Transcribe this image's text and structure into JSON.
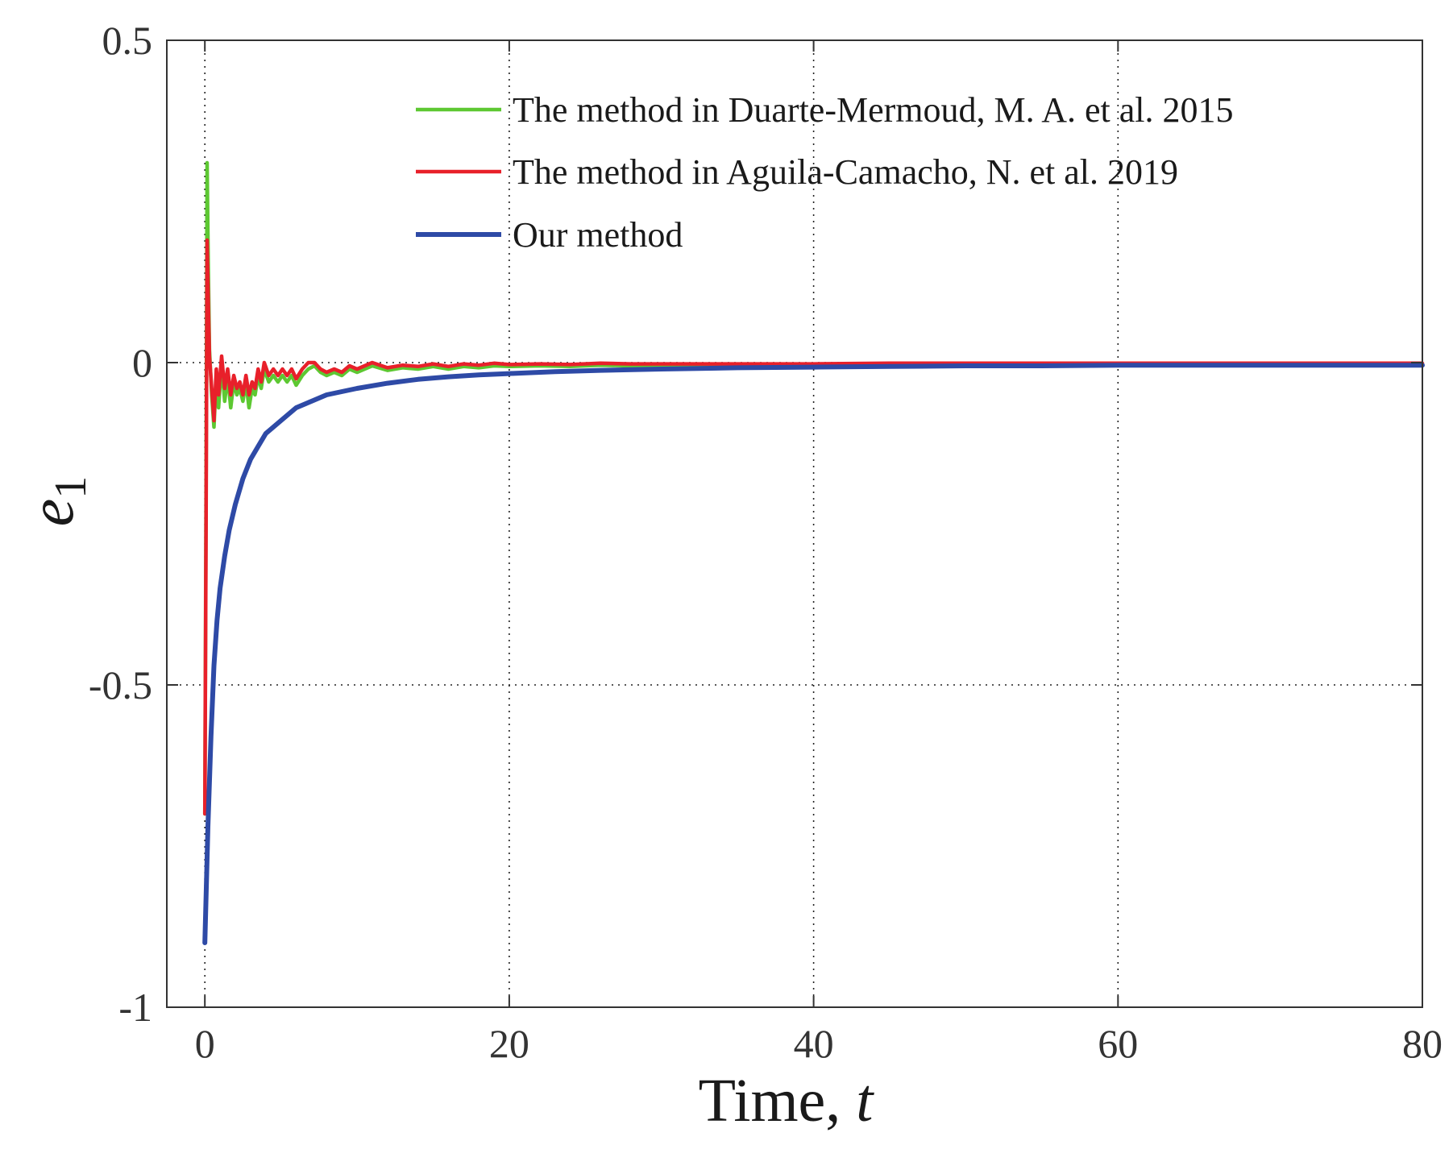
{
  "chart_data": {
    "type": "line",
    "title": "",
    "xlabel": "Time, ",
    "xlabel_var": "t",
    "ylabel": "e",
    "ylabel_sub": "1",
    "xlim": [
      -2.5,
      80
    ],
    "ylim": [
      -1,
      0.5
    ],
    "grid": true,
    "legend_position": "top-right",
    "xticks": [
      0,
      20,
      40,
      60,
      80
    ],
    "xtick_labels": [
      "0",
      "20",
      "40",
      "60",
      "80"
    ],
    "yticks": [
      -1,
      -0.5,
      0,
      0.5
    ],
    "ytick_labels": [
      "-1",
      "-0.5",
      "0",
      "0.5"
    ],
    "series": [
      {
        "name": "The method in Duarte-Mermoud, M. A. et al. 2015",
        "color": "#5dc832",
        "x": [
          0,
          0.08,
          0.15,
          0.22,
          0.3,
          0.45,
          0.6,
          0.75,
          0.9,
          1.1,
          1.3,
          1.5,
          1.7,
          1.9,
          2.1,
          2.3,
          2.5,
          2.7,
          2.9,
          3.1,
          3.3,
          3.5,
          3.7,
          3.9,
          4.2,
          4.5,
          4.8,
          5.1,
          5.4,
          5.7,
          6.0,
          6.4,
          6.8,
          7.2,
          7.6,
          8.0,
          8.5,
          9.0,
          9.5,
          10.0,
          11.0,
          12.0,
          13.0,
          14.0,
          15.0,
          16.0,
          17.0,
          18.0,
          19.0,
          20.0,
          22.0,
          24.0,
          26.0,
          28.0,
          30.0,
          35.0,
          40.0,
          45.0,
          50.0,
          55.0,
          60.0,
          65.0,
          70.0,
          75.0,
          80.0
        ],
        "values": [
          -0.7,
          -0.2,
          0.31,
          0.15,
          0.02,
          -0.05,
          -0.1,
          -0.02,
          -0.07,
          0.0,
          -0.06,
          -0.02,
          -0.07,
          -0.03,
          -0.05,
          -0.04,
          -0.06,
          -0.03,
          -0.07,
          -0.04,
          -0.05,
          -0.02,
          -0.04,
          -0.01,
          -0.03,
          -0.02,
          -0.03,
          -0.02,
          -0.03,
          -0.02,
          -0.035,
          -0.02,
          -0.01,
          -0.005,
          -0.015,
          -0.02,
          -0.015,
          -0.02,
          -0.01,
          -0.015,
          -0.005,
          -0.012,
          -0.008,
          -0.01,
          -0.006,
          -0.01,
          -0.006,
          -0.008,
          -0.005,
          -0.006,
          -0.005,
          -0.006,
          -0.004,
          -0.005,
          -0.004,
          -0.004,
          -0.004,
          -0.003,
          -0.003,
          -0.003,
          -0.003,
          -0.002,
          -0.002,
          -0.002,
          -0.002
        ]
      },
      {
        "name": "The method in Aguila-Camacho, N. et al. 2019",
        "color": "#e8202a",
        "x": [
          0,
          0.08,
          0.15,
          0.22,
          0.3,
          0.45,
          0.6,
          0.75,
          0.9,
          1.1,
          1.3,
          1.5,
          1.7,
          1.9,
          2.1,
          2.3,
          2.5,
          2.7,
          2.9,
          3.1,
          3.3,
          3.5,
          3.7,
          3.9,
          4.2,
          4.5,
          4.8,
          5.1,
          5.4,
          5.7,
          6.0,
          6.4,
          6.8,
          7.2,
          7.6,
          8.0,
          8.5,
          9.0,
          9.5,
          10.0,
          11.0,
          12.0,
          13.0,
          14.0,
          15.0,
          16.0,
          17.0,
          18.0,
          19.0,
          20.0,
          22.0,
          24.0,
          26.0,
          28.0,
          30.0,
          35.0,
          40.0,
          45.0,
          50.0,
          55.0,
          60.0,
          65.0,
          70.0,
          75.0,
          80.0
        ],
        "values": [
          -0.7,
          -0.25,
          0.19,
          0.1,
          0.01,
          -0.04,
          -0.09,
          -0.01,
          -0.05,
          0.01,
          -0.04,
          -0.01,
          -0.05,
          -0.02,
          -0.04,
          -0.03,
          -0.05,
          -0.02,
          -0.05,
          -0.03,
          -0.04,
          -0.01,
          -0.03,
          0.0,
          -0.02,
          -0.01,
          -0.02,
          -0.01,
          -0.02,
          -0.01,
          -0.025,
          -0.01,
          0.0,
          0.0,
          -0.01,
          -0.015,
          -0.01,
          -0.015,
          -0.005,
          -0.01,
          0.0,
          -0.008,
          -0.004,
          -0.006,
          -0.002,
          -0.006,
          -0.002,
          -0.004,
          -0.001,
          -0.003,
          -0.002,
          -0.003,
          -0.001,
          -0.002,
          -0.002,
          -0.002,
          -0.002,
          -0.001,
          -0.001,
          -0.001,
          -0.001,
          -0.001,
          -0.001,
          -0.001,
          -0.001
        ]
      },
      {
        "name": "Our method",
        "color": "#2e4aa6",
        "x": [
          0,
          0.2,
          0.4,
          0.6,
          0.8,
          1.0,
          1.3,
          1.6,
          2.0,
          2.5,
          3.0,
          3.5,
          4.0,
          4.5,
          5.0,
          6.0,
          7.0,
          8.0,
          9.0,
          10.0,
          12.0,
          14.0,
          16.0,
          18.0,
          20.0,
          23.0,
          26.0,
          30.0,
          35.0,
          40.0,
          45.0,
          50.0,
          55.0,
          60.0,
          65.0,
          70.0,
          75.0,
          80.0
        ],
        "values": [
          -0.9,
          -0.72,
          -0.58,
          -0.47,
          -0.4,
          -0.35,
          -0.3,
          -0.26,
          -0.22,
          -0.18,
          -0.15,
          -0.13,
          -0.11,
          -0.1,
          -0.09,
          -0.07,
          -0.06,
          -0.05,
          -0.045,
          -0.04,
          -0.032,
          -0.026,
          -0.022,
          -0.019,
          -0.017,
          -0.014,
          -0.012,
          -0.01,
          -0.008,
          -0.007,
          -0.006,
          -0.005,
          -0.005,
          -0.004,
          -0.004,
          -0.004,
          -0.004,
          -0.004
        ]
      }
    ]
  }
}
